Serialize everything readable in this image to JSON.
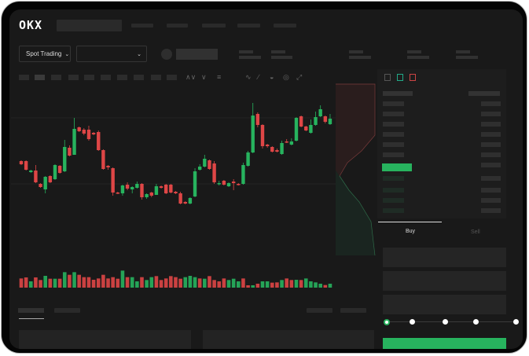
{
  "header": {
    "logo": "OKX"
  },
  "toolbar": {
    "mode_label": "Spot Trading",
    "mode_chevron": "chevron-down-icon",
    "pair_chevron": "chevron-down-icon"
  },
  "trade": {
    "buy_label": "Buy",
    "sell_label": "Sell",
    "leverage_steps": 5,
    "leverage_selected": 0
  },
  "colors": {
    "up": "#27b35e",
    "down": "#de4646",
    "background": "#191919",
    "accent": "#27b35e"
  },
  "chart_data": {
    "type": "candlestick",
    "candles_ohlc_order": "open,close,high,low",
    "candles": [
      [
        97,
        93,
        98,
        92
      ],
      [
        97,
        86,
        98,
        85
      ],
      [
        83,
        85,
        86,
        82
      ],
      [
        85,
        70,
        92,
        69
      ],
      [
        68,
        64,
        69,
        63
      ],
      [
        61,
        77,
        78,
        56
      ],
      [
        78,
        70,
        79,
        69
      ],
      [
        74,
        92,
        93,
        73
      ],
      [
        91,
        82,
        92,
        81
      ],
      [
        84,
        115,
        124,
        83
      ],
      [
        114,
        104,
        117,
        103
      ],
      [
        105,
        138,
        152,
        105
      ],
      [
        140,
        135,
        141,
        134
      ],
      [
        137,
        132,
        139,
        130
      ],
      [
        137,
        125,
        142,
        123
      ],
      [
        133,
        131,
        134,
        130
      ],
      [
        134,
        111,
        136,
        110
      ],
      [
        111,
        87,
        112,
        86
      ],
      [
        91,
        89,
        92,
        86
      ],
      [
        88,
        57,
        89,
        53
      ],
      [
        57,
        56,
        58,
        55
      ],
      [
        56,
        66,
        67,
        53
      ],
      [
        67,
        62,
        70,
        60
      ],
      [
        61,
        64,
        65,
        56
      ],
      [
        63,
        68,
        71,
        62
      ],
      [
        68,
        51,
        69,
        48
      ],
      [
        51,
        55,
        56,
        49
      ],
      [
        57,
        53,
        58,
        51
      ],
      [
        54,
        65,
        68,
        54
      ],
      [
        65,
        63,
        66,
        62
      ],
      [
        67,
        56,
        68,
        55
      ],
      [
        67,
        57,
        68,
        56
      ],
      [
        58,
        56,
        59,
        55
      ],
      [
        56,
        43,
        58,
        42
      ],
      [
        45,
        43,
        46,
        42
      ],
      [
        43,
        50,
        51,
        42
      ],
      [
        52,
        84,
        88,
        51
      ],
      [
        86,
        90,
        93,
        85
      ],
      [
        90,
        100,
        105,
        89
      ],
      [
        98,
        87,
        99,
        86
      ],
      [
        94,
        70,
        97,
        68
      ],
      [
        68,
        69,
        72,
        66
      ],
      [
        72,
        67,
        73,
        66
      ],
      [
        65,
        69,
        70,
        64
      ],
      [
        71,
        69,
        74,
        60
      ],
      [
        68,
        67,
        69,
        66
      ],
      [
        68,
        92,
        95,
        67
      ],
      [
        91,
        108,
        110,
        90
      ],
      [
        108,
        155,
        171,
        107
      ],
      [
        157,
        143,
        159,
        140
      ],
      [
        143,
        116,
        144,
        113
      ],
      [
        118,
        116,
        119,
        114
      ],
      [
        115,
        109,
        116,
        108
      ],
      [
        111,
        109,
        113,
        108
      ],
      [
        106,
        120,
        123,
        105
      ],
      [
        122,
        121,
        125,
        120
      ],
      [
        118,
        122,
        126,
        117
      ],
      [
        123,
        152,
        153,
        122
      ],
      [
        154,
        141,
        155,
        140
      ],
      [
        141,
        136,
        142,
        135
      ],
      [
        133,
        143,
        150,
        132
      ],
      [
        143,
        153,
        160,
        142
      ],
      [
        154,
        163,
        168,
        153
      ],
      [
        154,
        147,
        155,
        145
      ],
      [
        144,
        151,
        157,
        143
      ]
    ],
    "volume": [
      35,
      39,
      24,
      39,
      29,
      45,
      34,
      34,
      34,
      59,
      49,
      59,
      49,
      40,
      40,
      30,
      35,
      49,
      35,
      40,
      34,
      65,
      40,
      40,
      24,
      40,
      29,
      40,
      44,
      29,
      35,
      44,
      40,
      34,
      40,
      45,
      40,
      35,
      34,
      44,
      29,
      24,
      35,
      29,
      34,
      24,
      35,
      9,
      9,
      15,
      24,
      24,
      19,
      20,
      29,
      35,
      29,
      30,
      29,
      35,
      24,
      20,
      15,
      10,
      15
    ],
    "volume_up": [
      0,
      0,
      1,
      0,
      0,
      1,
      0,
      1,
      0,
      1,
      0,
      1,
      0,
      0,
      0,
      0,
      0,
      0,
      0,
      0,
      0,
      1,
      0,
      1,
      1,
      0,
      1,
      1,
      0,
      0,
      0,
      0,
      0,
      0,
      1,
      1,
      1,
      0,
      1,
      0,
      0,
      0,
      0,
      1,
      1,
      1,
      0,
      0,
      1,
      0,
      1,
      1,
      0,
      0,
      1,
      0,
      0,
      1,
      0,
      1,
      1,
      1,
      1,
      0,
      1
    ]
  }
}
